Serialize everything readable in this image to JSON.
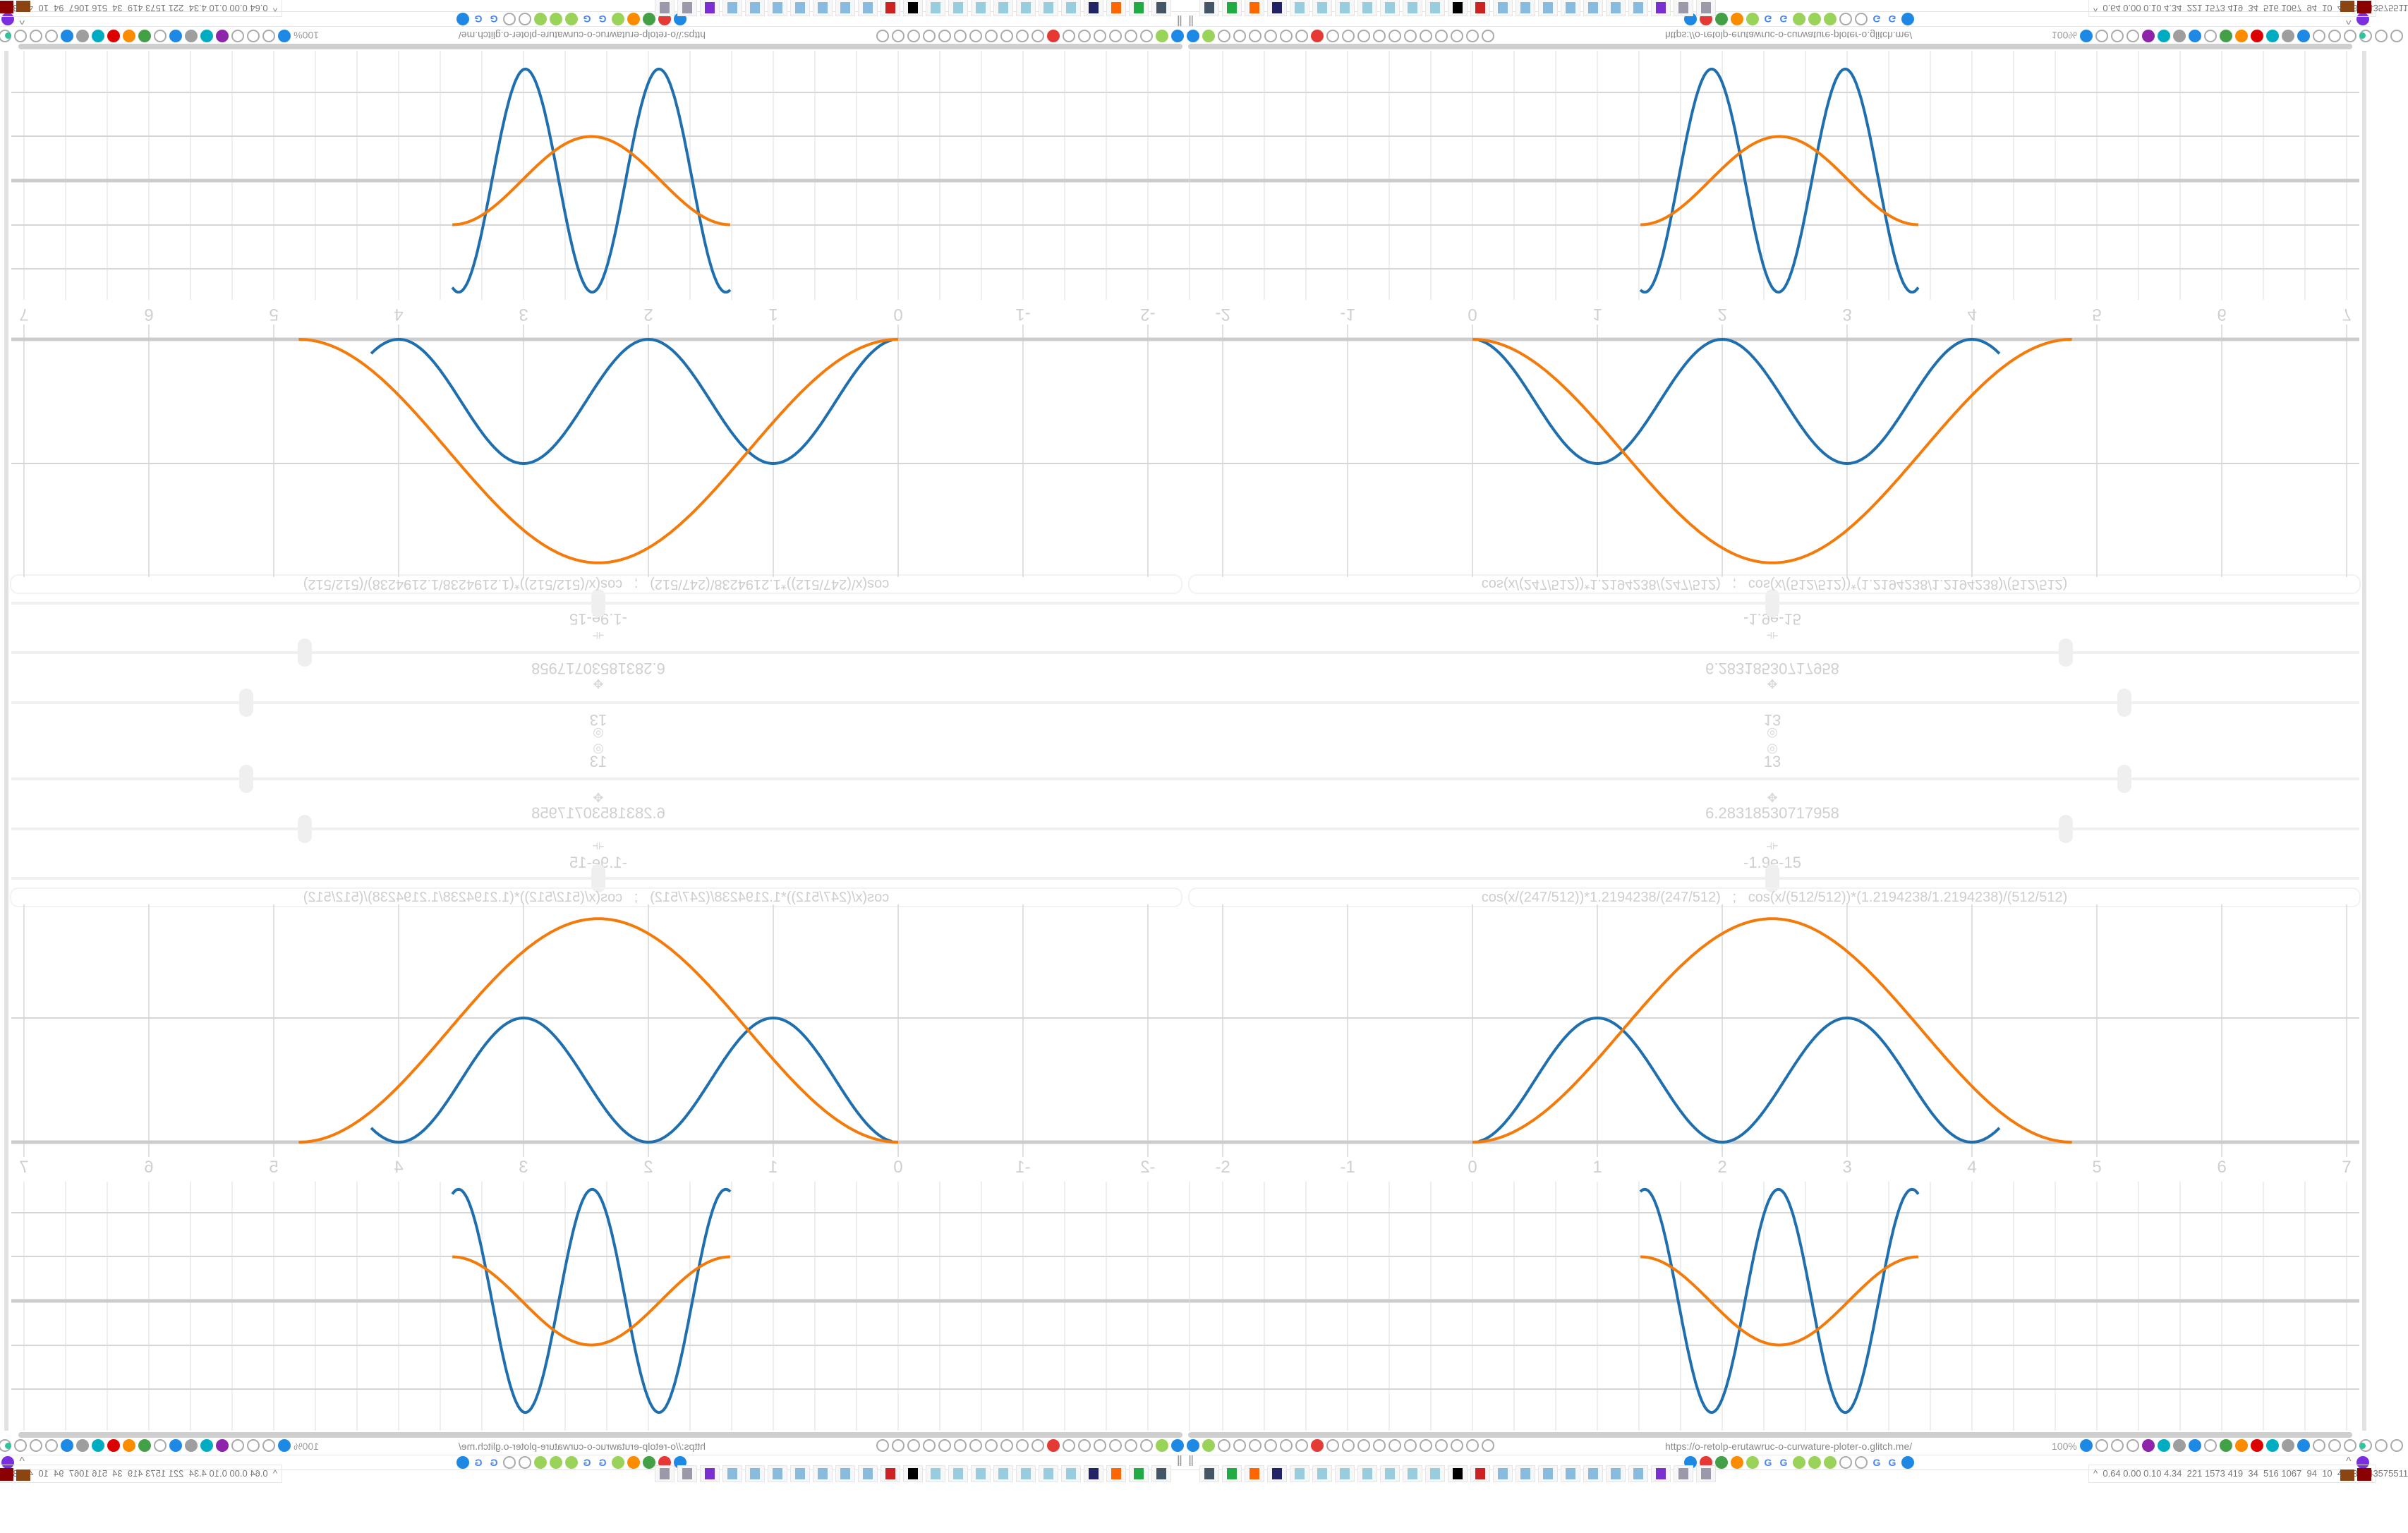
{
  "browser": {
    "url": "https://o-retolp-erutawruc-o-curwature-ploter-o.glitch.me/",
    "zoom": "100%",
    "toolbar_left_icons": [
      "filter-icon",
      "extension-icon",
      "globe-icon",
      "globe-icon",
      "headphones-icon",
      "headphones-icon",
      "globe-icon",
      "wrench-icon",
      "firefox-icon",
      "gear-icon",
      "globe-icon",
      "dot-icon",
      "circle-icon",
      "dot-icon",
      "circle-icon",
      "dot-icon",
      "folder-icon",
      "back-arrow-icon",
      "shield-icon",
      "lock-icon"
    ],
    "toolbar_right_icons": [
      "translate-icon",
      "star-icon",
      "forward-arrow-icon",
      "reload-icon",
      "download-icon",
      "color-picker-icon",
      "translate-icon",
      "mouse-icon",
      "gear-icon",
      "plus-icon",
      "upload-icon",
      "red-record-icon",
      "trash-icon",
      "share-icon",
      "archive-icon",
      "ublock-icon",
      "shield-icon",
      "globe-icon",
      "puzzle-icon",
      "wrench-icon",
      "gear-icon"
    ],
    "bookmark_icons": [
      "mail-icon",
      "blue-icon",
      "mute-icon",
      "cube-icon",
      "leaf-icon",
      "google-icon",
      "google-icon",
      "green-g-icon",
      "green-g-icon",
      "green-g-icon",
      "orange-gear-icon",
      "orange-gear-icon",
      "google-icon",
      "google-icon",
      "cube-icon"
    ],
    "bookmarks_toggle": "‖",
    "chevron": "^"
  },
  "sliders": [
    {
      "value": "13",
      "position": 0.8,
      "icon": "◎"
    },
    {
      "value": "6.28318530717958",
      "position": 0.75,
      "icon": "✥"
    },
    {
      "value": "-1.9e-15",
      "position": 0.5,
      "icon": "⟛"
    }
  ],
  "formula": "cos(x/(247/512))*1.2194238/(247/512)   ;   cos(x/(512/512))*(1.2194238/1.2194238)/(512/512)",
  "graph": {
    "x_ticks": [
      "-2",
      "-1",
      "0",
      "1",
      "2",
      "3",
      "4",
      "5",
      "6",
      "7"
    ],
    "colors": {
      "blue": "#1f6fae",
      "orange": "#f47b0a",
      "grid": "#d6d6d6",
      "axis": "#cccccc"
    }
  },
  "taskbar": {
    "apps": [
      "monitor-app",
      "terminal-app",
      "firefox-app",
      "floppy-app",
      "notepad-app",
      "notepad-app",
      "notepad-app",
      "notepad-app",
      "notepad-app",
      "notepad-app",
      "notepad-app",
      "inkscape-app",
      "red-app",
      "calculator-app",
      "calculator-app",
      "calculator-app",
      "calculator-app",
      "calculator-app",
      "calculator-app",
      "calculator-app",
      "tor-app",
      "document-app",
      "document-app"
    ],
    "tray_toggle": "^",
    "stats": "0.64 0.00 0.10 4.34  221 1573 419  34  516 1067  94  10  42  39  43575511"
  }
}
